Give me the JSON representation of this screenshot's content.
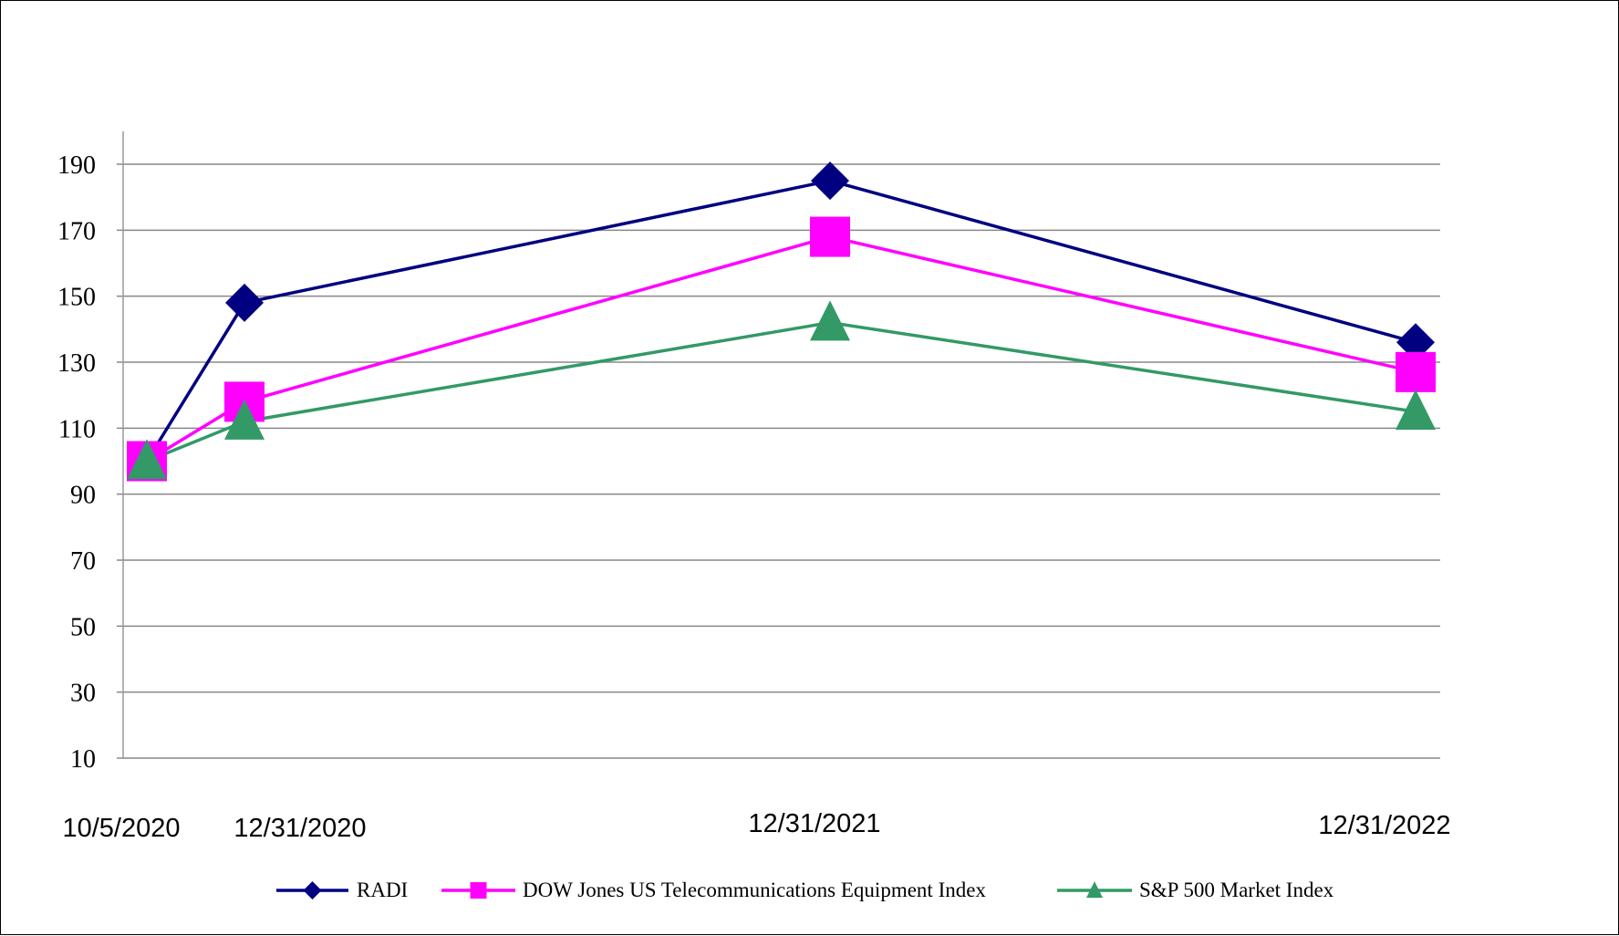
{
  "chart_data": {
    "type": "line",
    "title": "",
    "xlabel": "",
    "ylabel": "",
    "categories": [
      "10/5/2020",
      "12/31/2020",
      "12/31/2021",
      "12/31/2022"
    ],
    "yticks": [
      10,
      30,
      50,
      70,
      90,
      110,
      130,
      150,
      170,
      190
    ],
    "ylim": [
      10,
      190
    ],
    "grid": true,
    "legend_position": "bottom",
    "series": [
      {
        "name": "RADI",
        "color": "#000080",
        "marker": "diamond",
        "values": [
          100,
          148,
          185,
          136
        ]
      },
      {
        "name": "DOW Jones US Telecommunications Equipment Index",
        "color": "#ff00ff",
        "marker": "square",
        "values": [
          100,
          118,
          168,
          127
        ]
      },
      {
        "name": "S&P 500 Market Index",
        "color": "#339966",
        "marker": "triangle",
        "values": [
          100,
          112,
          142,
          115
        ]
      }
    ]
  }
}
